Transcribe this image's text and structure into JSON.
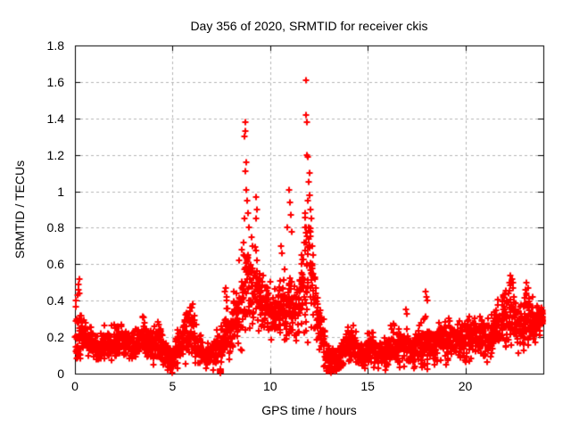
{
  "chart_data": {
    "type": "scatter",
    "title": "Day 356 of 2020, SRMTID for receiver ckis",
    "xlabel": "GPS time / hours",
    "ylabel": "SRMTID / TECUs",
    "xlim": [
      0,
      24
    ],
    "ylim": [
      0,
      1.8
    ],
    "xticks": [
      0,
      5,
      10,
      15,
      20
    ],
    "yticks": [
      0,
      0.2,
      0.4,
      0.6,
      0.8,
      1,
      1.2,
      1.4,
      1.6,
      1.8
    ],
    "grid": true,
    "grid_style": "dashed",
    "legend": "none",
    "marker": "plus",
    "marker_color": "#ff0000",
    "grid_color": "#b5b5b5",
    "axis_color": "#000000",
    "background_color": "#ffffff",
    "band_profile_note": "columns: hour bin start (bin width 0.25 h), band mean, band half-spread, all in TECUs as read from the plot",
    "band_profile": [
      [
        0.0,
        0.2,
        0.1
      ],
      [
        0.25,
        0.2,
        0.09
      ],
      [
        0.5,
        0.19,
        0.07
      ],
      [
        0.75,
        0.18,
        0.06
      ],
      [
        1.0,
        0.15,
        0.06
      ],
      [
        1.25,
        0.13,
        0.05
      ],
      [
        1.5,
        0.15,
        0.06
      ],
      [
        1.75,
        0.16,
        0.06
      ],
      [
        2.0,
        0.16,
        0.07
      ],
      [
        2.25,
        0.18,
        0.07
      ],
      [
        2.5,
        0.17,
        0.07
      ],
      [
        2.75,
        0.16,
        0.06
      ],
      [
        3.0,
        0.15,
        0.06
      ],
      [
        3.25,
        0.17,
        0.07
      ],
      [
        3.5,
        0.2,
        0.08
      ],
      [
        3.75,
        0.18,
        0.07
      ],
      [
        4.0,
        0.15,
        0.07
      ],
      [
        4.25,
        0.18,
        0.08
      ],
      [
        4.5,
        0.14,
        0.06
      ],
      [
        4.75,
        0.09,
        0.05
      ],
      [
        5.0,
        0.07,
        0.05
      ],
      [
        5.25,
        0.12,
        0.07
      ],
      [
        5.5,
        0.19,
        0.08
      ],
      [
        5.75,
        0.22,
        0.09
      ],
      [
        6.0,
        0.23,
        0.1
      ],
      [
        6.25,
        0.18,
        0.08
      ],
      [
        6.5,
        0.12,
        0.06
      ],
      [
        6.75,
        0.1,
        0.05
      ],
      [
        7.0,
        0.12,
        0.06
      ],
      [
        7.25,
        0.14,
        0.07
      ],
      [
        7.5,
        0.14,
        0.08
      ],
      [
        7.75,
        0.2,
        0.11
      ],
      [
        8.0,
        0.22,
        0.1
      ],
      [
        8.25,
        0.28,
        0.12
      ],
      [
        8.5,
        0.35,
        0.16
      ],
      [
        8.75,
        0.48,
        0.18
      ],
      [
        9.0,
        0.44,
        0.16
      ],
      [
        9.25,
        0.48,
        0.17
      ],
      [
        9.5,
        0.42,
        0.13
      ],
      [
        9.75,
        0.36,
        0.11
      ],
      [
        10.0,
        0.33,
        0.1
      ],
      [
        10.25,
        0.31,
        0.1
      ],
      [
        10.5,
        0.34,
        0.12
      ],
      [
        10.75,
        0.37,
        0.14
      ],
      [
        11.0,
        0.38,
        0.14
      ],
      [
        11.25,
        0.33,
        0.11
      ],
      [
        11.5,
        0.38,
        0.14
      ],
      [
        11.75,
        0.55,
        0.25
      ],
      [
        12.0,
        0.58,
        0.26
      ],
      [
        12.25,
        0.4,
        0.14
      ],
      [
        12.5,
        0.29,
        0.1
      ],
      [
        12.75,
        0.16,
        0.08
      ],
      [
        13.0,
        0.08,
        0.05
      ],
      [
        13.25,
        0.07,
        0.04
      ],
      [
        13.5,
        0.08,
        0.05
      ],
      [
        13.75,
        0.12,
        0.06
      ],
      [
        14.0,
        0.15,
        0.07
      ],
      [
        14.25,
        0.16,
        0.07
      ],
      [
        14.5,
        0.12,
        0.06
      ],
      [
        14.75,
        0.1,
        0.05
      ],
      [
        15.0,
        0.13,
        0.06
      ],
      [
        15.25,
        0.15,
        0.07
      ],
      [
        15.5,
        0.12,
        0.06
      ],
      [
        15.75,
        0.1,
        0.05
      ],
      [
        16.0,
        0.12,
        0.06
      ],
      [
        16.25,
        0.15,
        0.07
      ],
      [
        16.5,
        0.14,
        0.07
      ],
      [
        16.75,
        0.16,
        0.08
      ],
      [
        17.0,
        0.15,
        0.07
      ],
      [
        17.25,
        0.13,
        0.06
      ],
      [
        17.5,
        0.14,
        0.07
      ],
      [
        17.75,
        0.18,
        0.09
      ],
      [
        18.0,
        0.18,
        0.09
      ],
      [
        18.25,
        0.16,
        0.07
      ],
      [
        18.5,
        0.15,
        0.07
      ],
      [
        18.75,
        0.17,
        0.07
      ],
      [
        19.0,
        0.18,
        0.08
      ],
      [
        19.25,
        0.2,
        0.08
      ],
      [
        19.5,
        0.18,
        0.08
      ],
      [
        19.75,
        0.17,
        0.07
      ],
      [
        20.0,
        0.18,
        0.08
      ],
      [
        20.25,
        0.2,
        0.08
      ],
      [
        20.5,
        0.22,
        0.08
      ],
      [
        20.75,
        0.2,
        0.08
      ],
      [
        21.0,
        0.22,
        0.09
      ],
      [
        21.25,
        0.2,
        0.08
      ],
      [
        21.5,
        0.22,
        0.09
      ],
      [
        21.75,
        0.25,
        0.1
      ],
      [
        22.0,
        0.3,
        0.12
      ],
      [
        22.25,
        0.34,
        0.13
      ],
      [
        22.5,
        0.3,
        0.12
      ],
      [
        22.75,
        0.25,
        0.1
      ],
      [
        23.0,
        0.29,
        0.11
      ],
      [
        23.25,
        0.31,
        0.11
      ],
      [
        23.5,
        0.28,
        0.08
      ],
      [
        23.75,
        0.28,
        0.07
      ]
    ],
    "outlier_points": [
      [
        0.05,
        0.4
      ],
      [
        0.15,
        0.43
      ],
      [
        0.18,
        0.46
      ],
      [
        0.2,
        0.49
      ],
      [
        0.22,
        0.52
      ],
      [
        0.25,
        0.44
      ],
      [
        5.97,
        0.36
      ],
      [
        6.02,
        0.38
      ],
      [
        7.7,
        0.45
      ],
      [
        7.72,
        0.47
      ],
      [
        7.75,
        0.42
      ],
      [
        7.78,
        0.4
      ],
      [
        8.4,
        0.62
      ],
      [
        8.55,
        0.68
      ],
      [
        8.62,
        0.72
      ],
      [
        8.65,
        0.65
      ],
      [
        8.68,
        0.85
      ],
      [
        8.7,
        1.3
      ],
      [
        8.72,
        1.11
      ],
      [
        8.73,
        1.33
      ],
      [
        8.75,
        1.38
      ],
      [
        8.76,
        1.16
      ],
      [
        8.78,
        1.01
      ],
      [
        8.8,
        0.95
      ],
      [
        8.85,
        0.88
      ],
      [
        8.9,
        0.8
      ],
      [
        9.05,
        0.75
      ],
      [
        9.1,
        0.7
      ],
      [
        9.28,
        0.85
      ],
      [
        9.3,
        0.97
      ],
      [
        9.33,
        0.9
      ],
      [
        10.55,
        0.7
      ],
      [
        10.6,
        0.66
      ],
      [
        10.9,
        0.8
      ],
      [
        10.95,
        1.01
      ],
      [
        11.0,
        0.94
      ],
      [
        11.05,
        0.87
      ],
      [
        11.1,
        0.78
      ],
      [
        11.75,
        0.72
      ],
      [
        11.78,
        0.8
      ],
      [
        11.8,
        0.88
      ],
      [
        11.82,
        1.61
      ],
      [
        11.85,
        1.42
      ],
      [
        11.88,
        1.38
      ],
      [
        11.9,
        1.2
      ],
      [
        11.92,
        0.95
      ],
      [
        11.95,
        1.19
      ],
      [
        11.98,
        1.05
      ],
      [
        12.0,
        1.1
      ],
      [
        12.02,
        0.98
      ],
      [
        12.05,
        0.9
      ],
      [
        12.08,
        0.78
      ],
      [
        12.1,
        0.85
      ],
      [
        12.15,
        0.7
      ],
      [
        12.2,
        0.65
      ],
      [
        16.95,
        0.35
      ],
      [
        17.0,
        0.33
      ],
      [
        17.95,
        0.45
      ],
      [
        18.0,
        0.42
      ],
      [
        18.05,
        0.4
      ],
      [
        22.25,
        0.5
      ],
      [
        22.3,
        0.54
      ],
      [
        22.35,
        0.5
      ],
      [
        22.4,
        0.52
      ],
      [
        22.45,
        0.47
      ],
      [
        23.1,
        0.46
      ],
      [
        23.15,
        0.5
      ],
      [
        23.2,
        0.47
      ],
      [
        7.44,
        0.005
      ],
      [
        7.45,
        0.012
      ],
      [
        7.46,
        0.02
      ],
      [
        7.44,
        0.018
      ],
      [
        7.46,
        0.008
      ],
      [
        7.45,
        0.022
      ],
      [
        7.43,
        0.012
      ],
      [
        7.47,
        0.015
      ],
      [
        7.45,
        0.003
      ],
      [
        7.44,
        0.025
      ],
      [
        7.46,
        0.025
      ],
      [
        7.47,
        0.006
      ]
    ],
    "render_hints": {
      "points_per_bin": 27,
      "bin_width": 0.25,
      "seed": 42,
      "legend_position": "none"
    }
  }
}
